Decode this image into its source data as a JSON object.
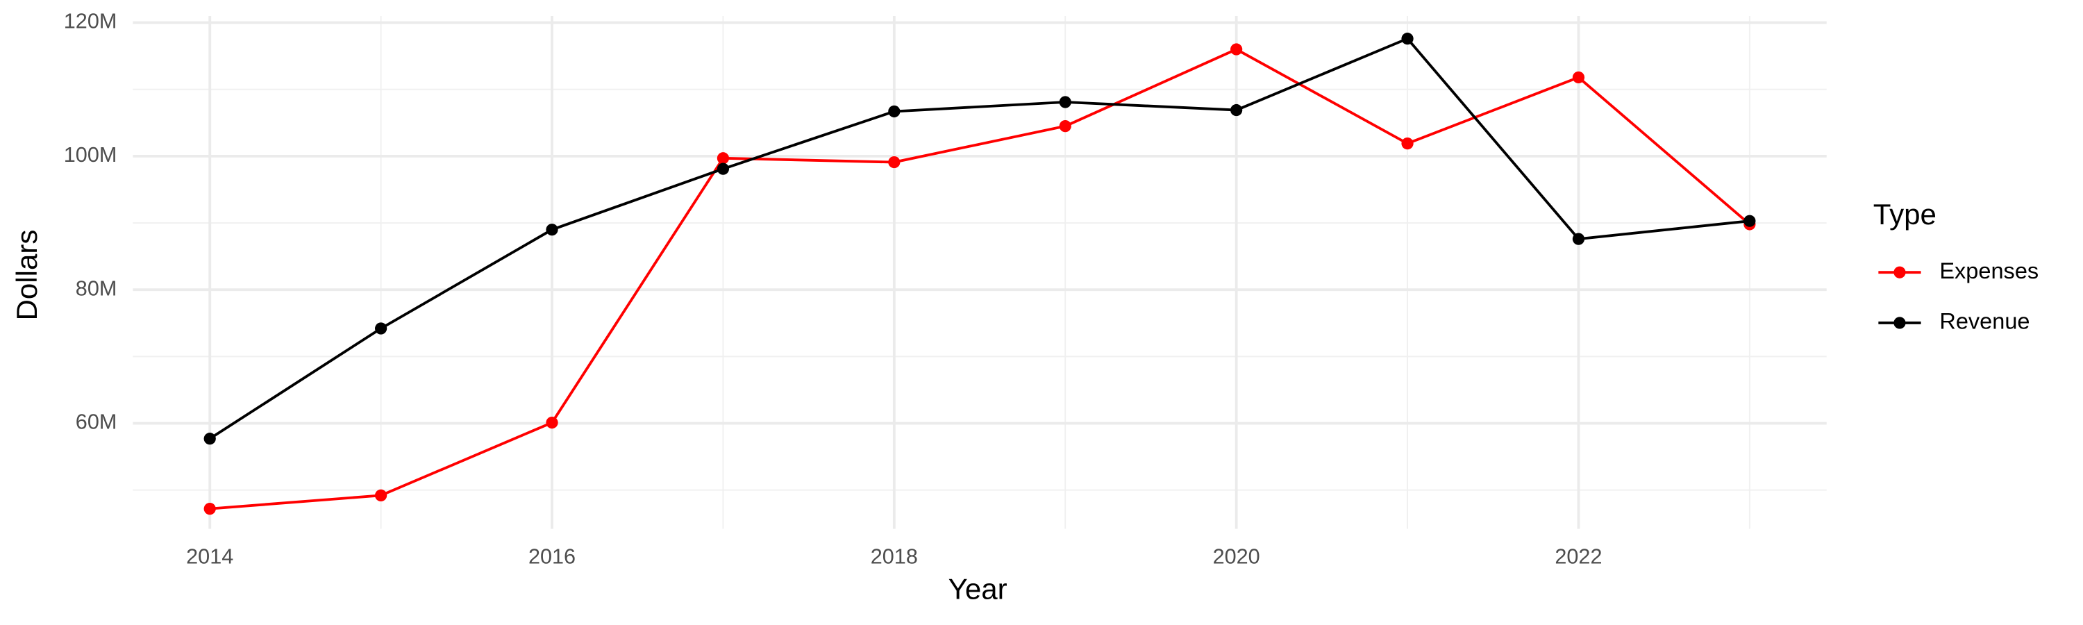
{
  "chart_data": {
    "type": "line",
    "x_label": "Year",
    "y_label": "Dollars",
    "legend_title": "Type",
    "legend_position": "right",
    "grid": true,
    "x": [
      2014,
      2015,
      2016,
      2017,
      2018,
      2019,
      2020,
      2021,
      2022,
      2023
    ],
    "xlim": [
      2013.55,
      2023.45
    ],
    "xticks": [
      2014,
      2016,
      2018,
      2020,
      2022
    ],
    "ylim": [
      44200000,
      121000000
    ],
    "yticks": [
      {
        "value": 60000000,
        "label": "60M"
      },
      {
        "value": 80000000,
        "label": "80M"
      },
      {
        "value": 100000000,
        "label": "100M"
      },
      {
        "value": 120000000,
        "label": "120M"
      }
    ],
    "series": [
      {
        "name": "Expenses",
        "color": "#ff0000",
        "values": [
          47200000,
          49200000,
          60100000,
          99700000,
          99100000,
          104500000,
          116000000,
          101900000,
          111800000,
          89800000
        ]
      },
      {
        "name": "Revenue",
        "color": "#000000",
        "values": [
          57700000,
          74200000,
          89000000,
          98100000,
          106700000,
          108100000,
          106900000,
          117600000,
          87600000,
          90300000
        ]
      }
    ]
  }
}
